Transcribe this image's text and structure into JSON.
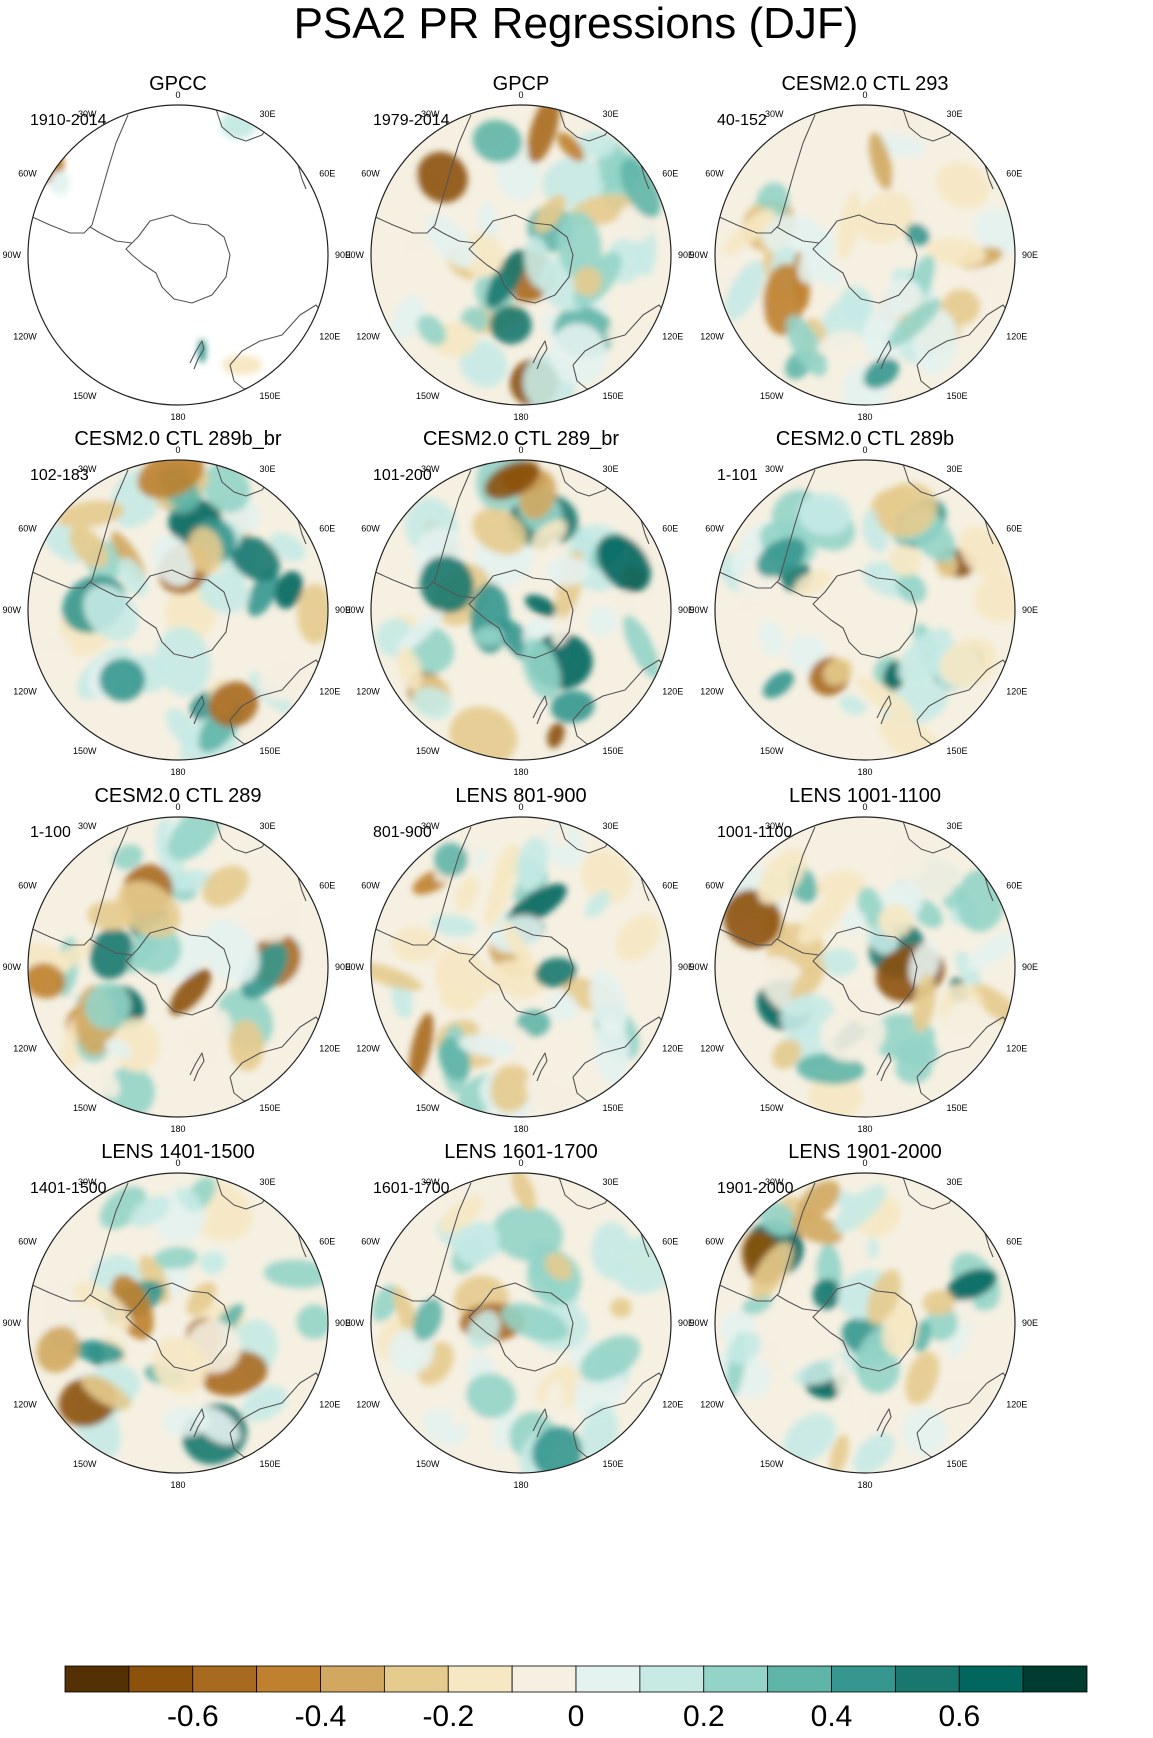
{
  "title": "PSA2 PR Regressions (DJF)",
  "longitude_labels": [
    "0",
    "30E",
    "60E",
    "90E",
    "120E",
    "150E",
    "180",
    "150W",
    "120W",
    "90W",
    "60W",
    "30W"
  ],
  "colorbar": {
    "tick_labels": [
      "-0.6",
      "-0.4",
      "-0.2",
      "0",
      "0.2",
      "0.4",
      "0.6"
    ],
    "colors": [
      "#543005",
      "#8c510a",
      "#a86a1f",
      "#bf812d",
      "#d2a860",
      "#e6cb8e",
      "#f6e8c3",
      "#f5f0e2",
      "#e4f2f0",
      "#c7eae5",
      "#94d4c8",
      "#5fb5a8",
      "#35978f",
      "#18786f",
      "#01665e",
      "#003c30"
    ]
  },
  "panels": [
    {
      "title": "GPCC",
      "period": "1910-2014",
      "masked": true
    },
    {
      "title": "GPCP",
      "period": "1979-2014"
    },
    {
      "title": "CESM2.0 CTL 293",
      "period": "40-152"
    },
    {
      "title": "CESM2.0 CTL 289b_br",
      "period": "102-183"
    },
    {
      "title": "CESM2.0 CTL 289_br",
      "period": "101-200"
    },
    {
      "title": "CESM2.0 CTL 289b",
      "period": "1-101"
    },
    {
      "title": "CESM2.0 CTL 289",
      "period": "1-100"
    },
    {
      "title": "LENS 801-900",
      "period": "801-900"
    },
    {
      "title": "LENS 1001-1100",
      "period": "1001-1100"
    },
    {
      "title": "LENS 1401-1500",
      "period": "1401-1500"
    },
    {
      "title": "LENS 1601-1700",
      "period": "1601-1700"
    },
    {
      "title": "LENS 1901-2000",
      "period": "1901-2000"
    }
  ]
}
